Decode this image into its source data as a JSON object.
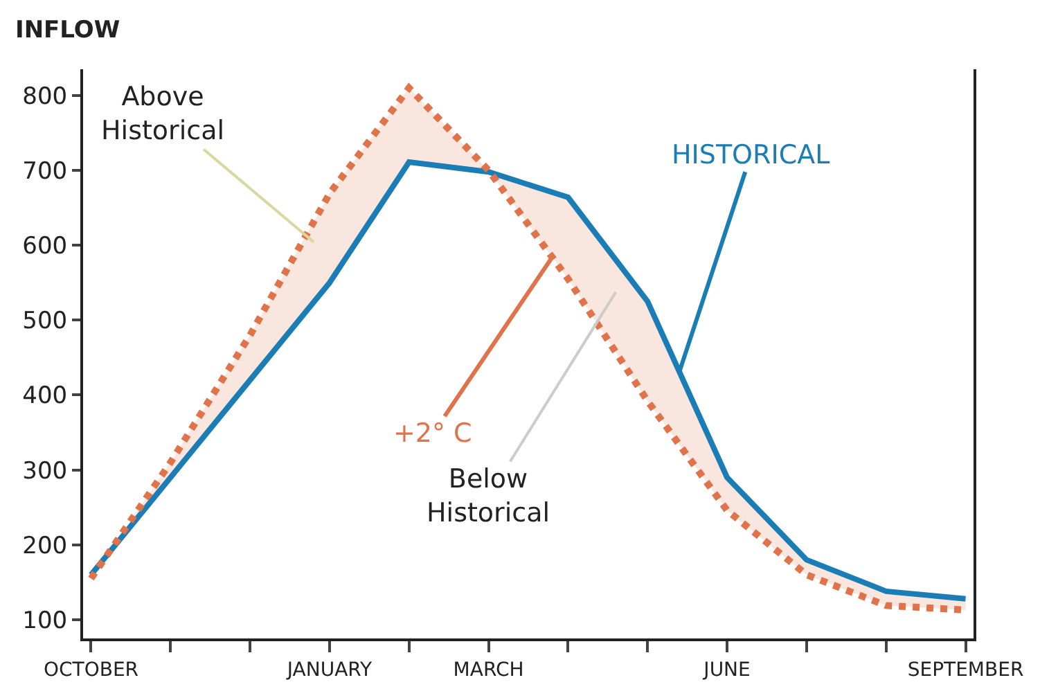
{
  "chart_data": {
    "type": "line",
    "ylabel": "INFLOW",
    "categories": [
      "OCTOBER",
      null,
      null,
      "JANUARY",
      null,
      "MARCH",
      null,
      null,
      "JUNE",
      null,
      null,
      "SEPTEMBER"
    ],
    "series": [
      {
        "name": "HISTORICAL",
        "color": "#1a7db5",
        "line_style": "solid",
        "values": [
          160,
          290,
          420,
          550,
          711,
          698,
          664,
          525,
          290,
          180,
          138,
          128
        ]
      },
      {
        "name": "+2° C",
        "color": "#e0734a",
        "line_style": "dotted",
        "values": [
          155,
          310,
          480,
          669,
          810,
          700,
          555,
          392,
          246,
          160,
          119,
          113
        ]
      }
    ],
    "annotations": [
      "Above Historical",
      "Below Historical"
    ],
    "ylim": [
      75,
      835
    ],
    "yticks": [
      100,
      200,
      300,
      400,
      500,
      600,
      700,
      800
    ],
    "legend": false,
    "marker": "none"
  }
}
